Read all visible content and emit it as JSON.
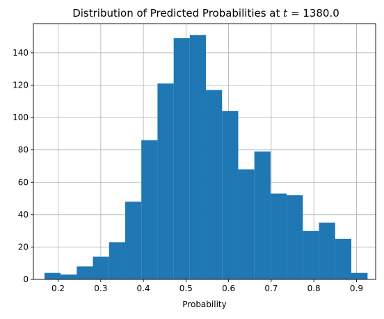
{
  "chart_data": {
    "type": "histogram",
    "title": "Distribution of Predicted Probabilities at t = 1380.0",
    "title_prefix": "Distribution of Predicted Probabilities at ",
    "title_var": "t",
    "title_eq": " = 1380.0",
    "xlabel": "Probability",
    "ylabel": "",
    "xlim": [
      0.142,
      0.945
    ],
    "ylim": [
      0,
      158
    ],
    "grid": true,
    "bar_color": "#1f77b4",
    "xticks": [
      0.2,
      0.3,
      0.4,
      0.5,
      0.6,
      0.7,
      0.8,
      0.9
    ],
    "xtick_labels": [
      "0.2",
      "0.3",
      "0.4",
      "0.5",
      "0.6",
      "0.7",
      "0.8",
      "0.9"
    ],
    "yticks": [
      0,
      20,
      40,
      60,
      80,
      100,
      120,
      140
    ],
    "ytick_labels": [
      "0",
      "20",
      "40",
      "60",
      "80",
      "100",
      "120",
      "140"
    ],
    "bins": [
      {
        "x0": 0.168,
        "x1": 0.2058,
        "value": 4
      },
      {
        "x0": 0.2058,
        "x1": 0.2437,
        "value": 3
      },
      {
        "x0": 0.2437,
        "x1": 0.2816,
        "value": 8
      },
      {
        "x0": 0.2816,
        "x1": 0.3195,
        "value": 14
      },
      {
        "x0": 0.3195,
        "x1": 0.3574,
        "value": 23
      },
      {
        "x0": 0.3574,
        "x1": 0.3953,
        "value": 48
      },
      {
        "x0": 0.3953,
        "x1": 0.4332,
        "value": 86
      },
      {
        "x0": 0.4332,
        "x1": 0.4711,
        "value": 121
      },
      {
        "x0": 0.4711,
        "x1": 0.5089,
        "value": 149
      },
      {
        "x0": 0.5089,
        "x1": 0.5468,
        "value": 151
      },
      {
        "x0": 0.5468,
        "x1": 0.5847,
        "value": 117
      },
      {
        "x0": 0.5847,
        "x1": 0.6226,
        "value": 104
      },
      {
        "x0": 0.6226,
        "x1": 0.6605,
        "value": 68
      },
      {
        "x0": 0.6605,
        "x1": 0.6984,
        "value": 79
      },
      {
        "x0": 0.6984,
        "x1": 0.7363,
        "value": 53
      },
      {
        "x0": 0.7363,
        "x1": 0.7742,
        "value": 52
      },
      {
        "x0": 0.7742,
        "x1": 0.8121,
        "value": 30
      },
      {
        "x0": 0.8121,
        "x1": 0.85,
        "value": 35
      },
      {
        "x0": 0.85,
        "x1": 0.8879,
        "value": 25
      },
      {
        "x0": 0.8879,
        "x1": 0.926,
        "value": 4
      }
    ]
  }
}
